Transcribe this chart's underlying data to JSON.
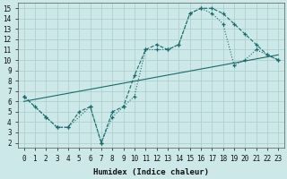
{
  "xlabel": "Humidex (Indice chaleur)",
  "bg_color": "#cce8e8",
  "grid_color": "#b0d0d0",
  "line_color": "#1a6b6b",
  "xlim": [
    -0.5,
    23.5
  ],
  "ylim": [
    1.5,
    15.5
  ],
  "xticks": [
    0,
    1,
    2,
    3,
    4,
    5,
    6,
    7,
    8,
    9,
    10,
    11,
    12,
    13,
    14,
    15,
    16,
    17,
    18,
    19,
    20,
    21,
    22,
    23
  ],
  "yticks": [
    2,
    3,
    4,
    5,
    6,
    7,
    8,
    9,
    10,
    11,
    12,
    13,
    14,
    15
  ],
  "line1_x": [
    0,
    1,
    2,
    3,
    4,
    5,
    6,
    7,
    8,
    9,
    10,
    11,
    12,
    13,
    14,
    15,
    16,
    17,
    18,
    19,
    20,
    21,
    22,
    23
  ],
  "line1_y": [
    6.5,
    5.5,
    4.5,
    3.5,
    3.5,
    5.0,
    5.5,
    2.0,
    5.0,
    5.5,
    8.5,
    11.0,
    11.5,
    11.0,
    11.5,
    14.5,
    15.0,
    15.0,
    14.5,
    13.5,
    12.5,
    11.5,
    10.5,
    10.0
  ],
  "line2_x": [
    0,
    2,
    3,
    4,
    6,
    7,
    8,
    9,
    10,
    11,
    12,
    13,
    14,
    15,
    16,
    17,
    18,
    19,
    20,
    21,
    22,
    23
  ],
  "line2_y": [
    6.5,
    4.5,
    3.5,
    3.5,
    5.5,
    2.0,
    4.5,
    5.5,
    6.5,
    11.0,
    11.0,
    11.0,
    11.5,
    14.5,
    15.0,
    14.5,
    13.5,
    9.5,
    10.0,
    11.0,
    10.5,
    10.0
  ],
  "line3_x": [
    0,
    23
  ],
  "line3_y": [
    6.0,
    10.5
  ]
}
